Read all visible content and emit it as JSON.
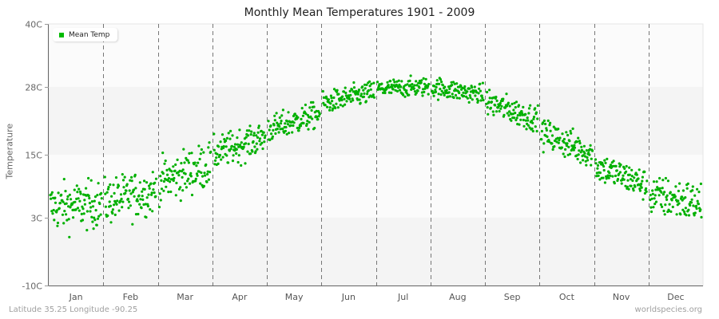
{
  "title": "Monthly Mean Temperatures 1901 - 2009",
  "footer": {
    "location": "Latitude 35.25 Longitude -90.25",
    "source": "worldspecies.org"
  },
  "colors": {
    "point": "#00b000",
    "band_light": "#fbfbfb",
    "band_dark": "#f4f4f4",
    "axis": "#666666",
    "grid_dash": "#777777"
  },
  "chart_data": {
    "type": "scatter",
    "title": "Monthly Mean Temperatures 1901 - 2009",
    "xlabel": "",
    "ylabel": "Temperature",
    "ylim": [
      -10,
      40
    ],
    "yticks": [
      -10,
      3,
      15,
      28,
      40
    ],
    "ytick_labels": [
      "-10C",
      "3C",
      "15C",
      "28C",
      "40C"
    ],
    "categories": [
      "Jan",
      "Feb",
      "Mar",
      "Apr",
      "May",
      "Jun",
      "Jul",
      "Aug",
      "Sep",
      "Oct",
      "Nov",
      "Dec"
    ],
    "legend": [
      {
        "name": "Mean Temp",
        "color": "#00b000"
      }
    ],
    "legend_position": "top-left",
    "grid": "vertical dashed month dividers; alternating horizontal bands",
    "years": [
      1901,
      2009
    ],
    "points_per_month": 109,
    "series": [
      {
        "name": "Mean Temp",
        "monthly_mean": [
          5.3,
          7.1,
          11.5,
          16.8,
          21.3,
          25.9,
          27.8,
          27.2,
          23.4,
          17.2,
          11.0,
          6.5
        ],
        "monthly_min": [
          -1.5,
          0.5,
          5.0,
          12.0,
          17.5,
          23.5,
          26.0,
          25.0,
          19.5,
          13.0,
          6.0,
          0.5
        ],
        "monthly_max": [
          10.5,
          12.5,
          17.5,
          20.5,
          25.0,
          30.0,
          30.5,
          30.0,
          28.0,
          21.5,
          14.5,
          10.5
        ],
        "monthly_spread": [
          2.3,
          2.2,
          2.2,
          1.6,
          1.3,
          1.1,
          0.9,
          1.0,
          1.3,
          1.5,
          1.5,
          2.0
        ]
      }
    ]
  }
}
